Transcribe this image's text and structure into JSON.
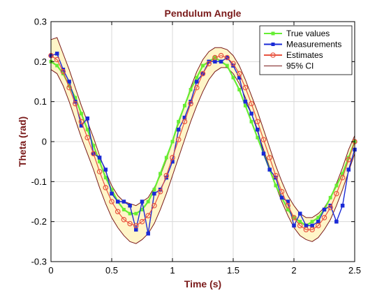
{
  "chart_data": {
    "type": "line",
    "title": "Pendulum Angle",
    "xlabel": "Time (s)",
    "ylabel": "Theta (rad)",
    "xlim": [
      0,
      2.5
    ],
    "ylim": [
      -0.3,
      0.3
    ],
    "xticks": [
      "0",
      "0.5",
      "1",
      "1.5",
      "2",
      "2.5"
    ],
    "yticks": [
      "-0.3",
      "-0.2",
      "-0.1",
      "0",
      "0.1",
      "0.2",
      "0.3"
    ],
    "grid": true,
    "legend_position": "top-right",
    "title_color": "#7a1a1a",
    "label_color": "#7a1a1a",
    "ci_fill_color": "#fff5c8",
    "ci_line_color": "#7a1a1a",
    "x": [
      0,
      0.05,
      0.1,
      0.15,
      0.2,
      0.25,
      0.3,
      0.35,
      0.4,
      0.45,
      0.5,
      0.55,
      0.6,
      0.65,
      0.7,
      0.75,
      0.8,
      0.85,
      0.9,
      0.95,
      1,
      1.05,
      1.1,
      1.15,
      1.2,
      1.25,
      1.3,
      1.35,
      1.4,
      1.45,
      1.5,
      1.55,
      1.6,
      1.65,
      1.7,
      1.75,
      1.8,
      1.85,
      1.9,
      1.95,
      2,
      2.05,
      2.1,
      2.15,
      2.2,
      2.25,
      2.3,
      2.35,
      2.4,
      2.45,
      2.5
    ],
    "series": [
      {
        "name": "True values",
        "color": "#66ee33",
        "marker": "square",
        "values": [
          0.2,
          0.19,
          0.17,
          0.14,
          0.11,
          0.07,
          0.03,
          -0.01,
          -0.05,
          -0.09,
          -0.12,
          -0.15,
          -0.17,
          -0.18,
          -0.18,
          -0.17,
          -0.15,
          -0.12,
          -0.08,
          -0.04,
          0.0,
          0.05,
          0.09,
          0.13,
          0.16,
          0.19,
          0.2,
          0.21,
          0.2,
          0.19,
          0.16,
          0.13,
          0.09,
          0.05,
          0.01,
          -0.03,
          -0.07,
          -0.11,
          -0.14,
          -0.17,
          -0.19,
          -0.2,
          -0.21,
          -0.2,
          -0.19,
          -0.17,
          -0.14,
          -0.11,
          -0.08,
          -0.04,
          0.0
        ]
      },
      {
        "name": "Measurements",
        "color": "#1a2ad6",
        "marker": "square",
        "values": [
          0.215,
          0.22,
          0.18,
          0.15,
          0.1,
          0.04,
          0.058,
          -0.03,
          -0.04,
          -0.07,
          -0.13,
          -0.15,
          -0.15,
          -0.16,
          -0.22,
          -0.15,
          -0.23,
          -0.13,
          -0.12,
          -0.09,
          -0.05,
          0.03,
          0.06,
          0.1,
          0.15,
          0.17,
          0.2,
          0.2,
          0.2,
          0.21,
          0.19,
          0.16,
          0.1,
          0.07,
          0.03,
          -0.03,
          -0.07,
          -0.09,
          -0.14,
          -0.15,
          -0.21,
          -0.18,
          -0.21,
          -0.21,
          -0.2,
          -0.17,
          -0.16,
          -0.2,
          -0.16,
          -0.07,
          -0.02
        ]
      },
      {
        "name": "Estimates",
        "color": "#e8533f",
        "marker": "circle",
        "values": [
          0.215,
          0.205,
          0.175,
          0.135,
          0.095,
          0.05,
          0.01,
          -0.03,
          -0.075,
          -0.115,
          -0.15,
          -0.175,
          -0.195,
          -0.205,
          -0.21,
          -0.2,
          -0.185,
          -0.16,
          -0.125,
          -0.085,
          -0.04,
          0.005,
          0.05,
          0.095,
          0.135,
          0.17,
          0.195,
          0.21,
          0.215,
          0.21,
          0.195,
          0.17,
          0.135,
          0.095,
          0.05,
          0.005,
          -0.04,
          -0.085,
          -0.125,
          -0.16,
          -0.19,
          -0.21,
          -0.22,
          -0.22,
          -0.21,
          -0.19,
          -0.165,
          -0.13,
          -0.09,
          -0.045,
          0.0
        ]
      }
    ],
    "ci": {
      "name": "95% CI",
      "upper": [
        0.255,
        0.26,
        0.22,
        0.18,
        0.135,
        0.09,
        0.05,
        0.01,
        -0.035,
        -0.075,
        -0.11,
        -0.135,
        -0.15,
        -0.155,
        -0.16,
        -0.15,
        -0.14,
        -0.115,
        -0.085,
        -0.045,
        0.0,
        0.045,
        0.09,
        0.135,
        0.175,
        0.205,
        0.225,
        0.235,
        0.235,
        0.23,
        0.215,
        0.19,
        0.155,
        0.115,
        0.075,
        0.03,
        -0.015,
        -0.06,
        -0.1,
        -0.135,
        -0.16,
        -0.18,
        -0.19,
        -0.19,
        -0.18,
        -0.165,
        -0.14,
        -0.105,
        -0.065,
        -0.02,
        0.015
      ],
      "lower": [
        0.18,
        0.17,
        0.14,
        0.1,
        0.055,
        0.01,
        -0.03,
        -0.07,
        -0.115,
        -0.155,
        -0.19,
        -0.215,
        -0.235,
        -0.25,
        -0.255,
        -0.245,
        -0.23,
        -0.205,
        -0.17,
        -0.13,
        -0.085,
        -0.04,
        0.005,
        0.05,
        0.09,
        0.125,
        0.155,
        0.175,
        0.185,
        0.185,
        0.17,
        0.145,
        0.11,
        0.07,
        0.025,
        -0.02,
        -0.065,
        -0.11,
        -0.15,
        -0.185,
        -0.215,
        -0.235,
        -0.245,
        -0.25,
        -0.24,
        -0.22,
        -0.195,
        -0.16,
        -0.12,
        -0.075,
        -0.03
      ]
    }
  }
}
